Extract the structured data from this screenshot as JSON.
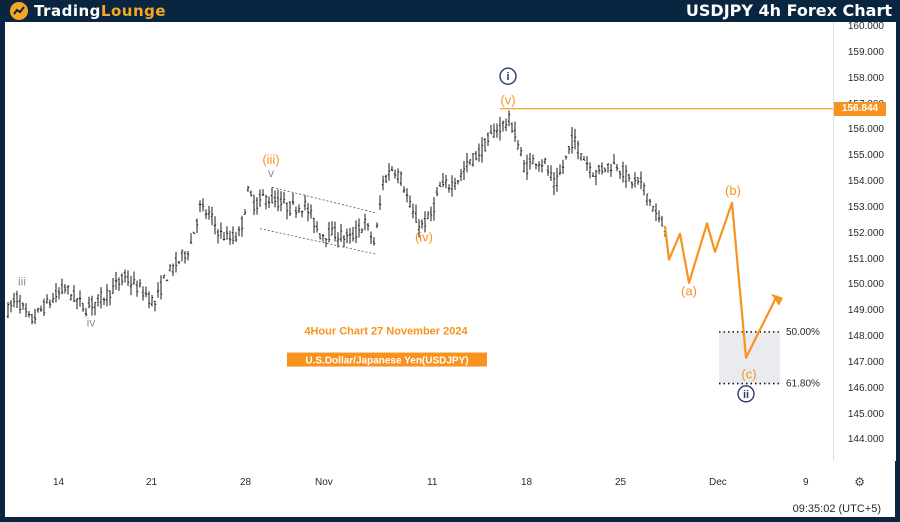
{
  "header": {
    "brand_prefix": "Trading",
    "brand_suffix": "Lounge",
    "chart_title": "USDJPY 4h Forex Chart"
  },
  "chart_data": {
    "type": "candlestick",
    "symbol": "USDJPY",
    "timeframe": "4h",
    "ylim": [
      143.2,
      160.2
    ],
    "y_ticks": [
      "160.000",
      "159.000",
      "158.000",
      "157.000",
      "156.000",
      "155.000",
      "154.000",
      "153.000",
      "152.000",
      "151.000",
      "150.000",
      "149.000",
      "148.000",
      "147.000",
      "146.000",
      "145.000",
      "144.000"
    ],
    "x_ticks": [
      "14",
      "21",
      "28",
      "Nov",
      "11",
      "18",
      "25",
      "Dec",
      "9"
    ],
    "price_line": {
      "value": 156.844,
      "label": "156.844",
      "color": "#f7931e"
    },
    "annotations": {
      "subtitle": "4Hour Chart 27 November 2024",
      "instrument": "U.S.Dollar/Japanese Yen(USDJPY)"
    },
    "wave_labels": {
      "iii_grey": "iii",
      "iv_grey": "iv",
      "iii_orange": "(iii)",
      "v_grey": "v",
      "iv_orange": "(iv)",
      "i_circle": "i",
      "v_orange": "(v)",
      "a_orange": "(a)",
      "b_orange": "(b)",
      "c_orange": "(c)",
      "ii_circle": "ii"
    },
    "fib_levels": [
      {
        "label": "50.00%",
        "value": 148.2
      },
      {
        "label": "61.80%",
        "value": 146.2
      }
    ],
    "projection": [
      {
        "x": "Nov 27",
        "y": 152.3
      },
      {
        "x": "Nov 28",
        "y": 151.0
      },
      {
        "x": "Nov 29",
        "y": 152.0
      },
      {
        "x": "Nov 30",
        "y": 150.1
      },
      {
        "x": "Dec 1",
        "y": 152.4
      },
      {
        "x": "Dec 2",
        "y": 151.3
      },
      {
        "x": "Dec 3",
        "y": 153.2
      },
      {
        "x": "Dec 5",
        "y": 147.2
      },
      {
        "x": "Dec 7",
        "y": 149.6
      }
    ],
    "colors": {
      "candle": "#1a1a1a",
      "wave_orange": "#f7931e",
      "wave_grey": "#8a8f98",
      "wave_navy": "#2b3a67",
      "fib_box": "#e9ebee"
    }
  },
  "footer": {
    "clock": "09:35:02 (UTC+5)"
  }
}
